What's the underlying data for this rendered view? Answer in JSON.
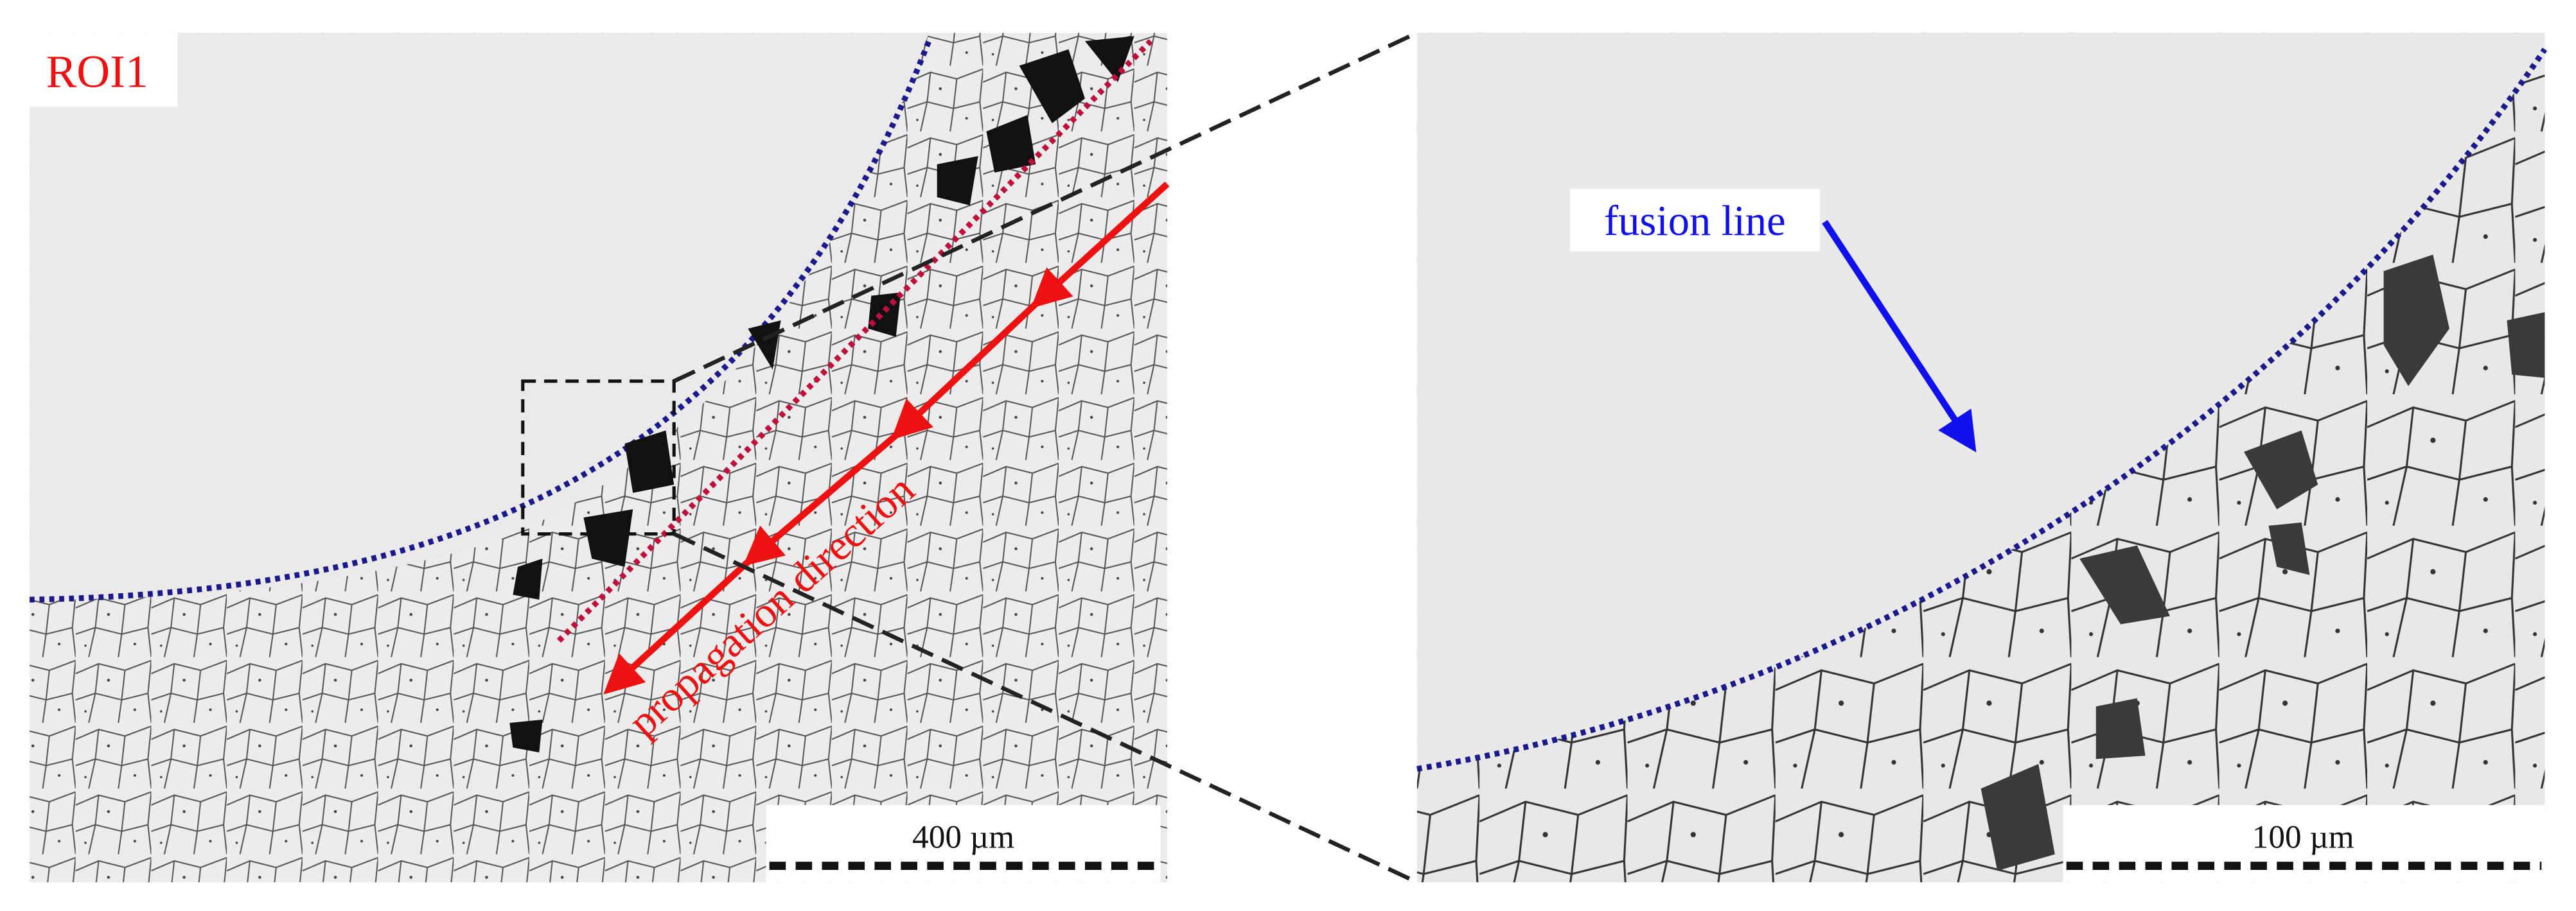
{
  "left_panel": {
    "label": "ROI1",
    "annotation": "propagation direction",
    "scale_bar": "400 µm"
  },
  "right_panel": {
    "annotation": "fusion line",
    "scale_bar": "100 µm"
  }
}
